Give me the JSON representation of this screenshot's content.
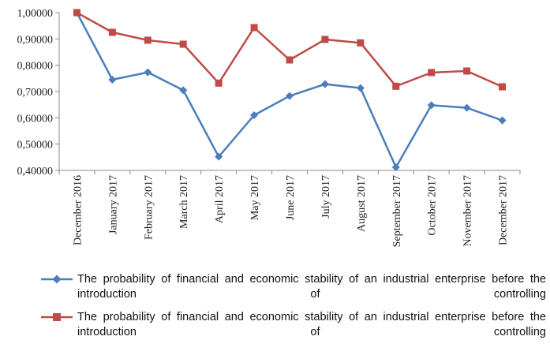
{
  "chart_data": {
    "type": "line",
    "categories": [
      "December 2016",
      "January 2017",
      "February 2017",
      "March 2017",
      "April 2017",
      "May 2017",
      "June 2017",
      "July 2017",
      "August 2017",
      "September 2017",
      "October 2017",
      "November 2017",
      "December 2017"
    ],
    "ylim": [
      0.4,
      1.0
    ],
    "yticks": [
      "0,40000",
      "0,50000",
      "0,60000",
      "0,70000",
      "0,80000",
      "0,90000",
      "1,00000"
    ],
    "grid": false,
    "legend_position": "bottom",
    "series": [
      {
        "name": "The probability of financial and economic stability of an industrial enterprise before the introduction of controlling",
        "color": "#4a7ebb",
        "marker": "diamond",
        "values": [
          1.0,
          0.745,
          0.773,
          0.705,
          0.452,
          0.61,
          0.683,
          0.728,
          0.713,
          0.412,
          0.648,
          0.638,
          0.59
        ]
      },
      {
        "name": "The probability of financial and economic stability of an industrial enterprise before the introduction of controlling",
        "color": "#be4b48",
        "marker": "square",
        "values": [
          1.0,
          0.925,
          0.895,
          0.88,
          0.732,
          0.943,
          0.82,
          0.898,
          0.885,
          0.72,
          0.772,
          0.778,
          0.718
        ]
      }
    ]
  }
}
